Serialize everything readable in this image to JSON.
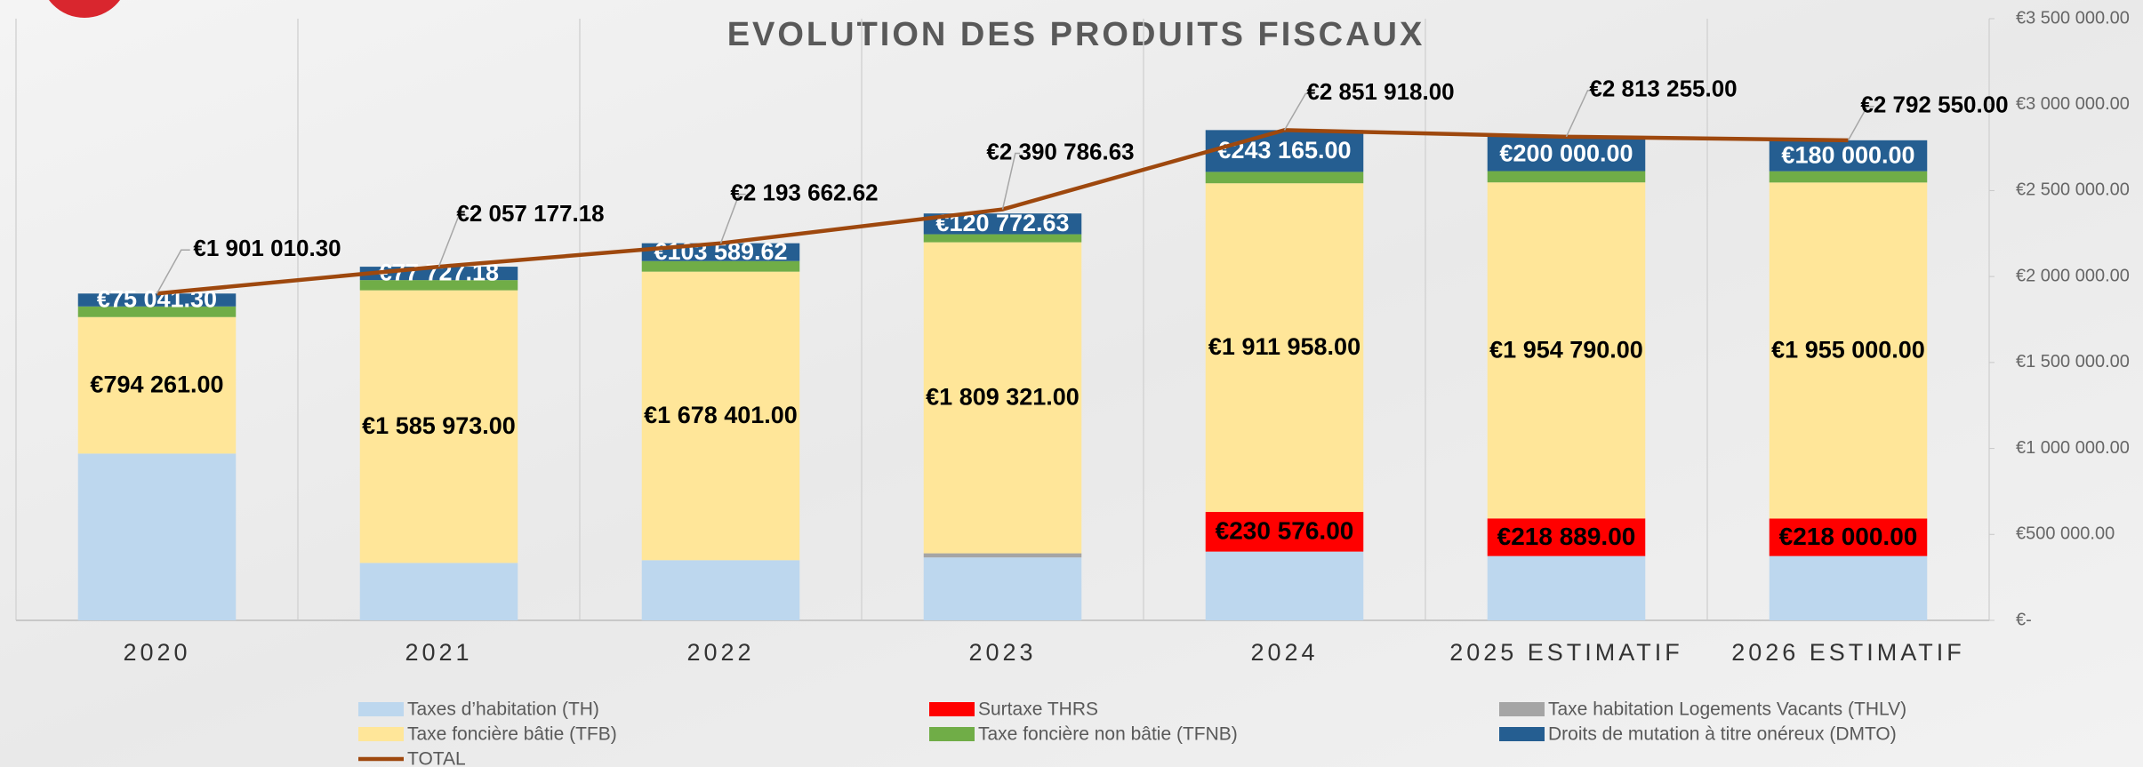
{
  "chart_data": {
    "type": "stacked_bar_line",
    "title": "EVOLUTION DES PRODUITS FISCAUX",
    "categories": [
      "2020",
      "2021",
      "2022",
      "2023",
      "2024",
      "2025 ESTIMATIF",
      "2026 ESTIMATIF"
    ],
    "ylim": [
      0,
      3500000
    ],
    "yticks": [
      {
        "value": 0,
        "label": "€-"
      },
      {
        "value": 500000,
        "label": "€500 000.00"
      },
      {
        "value": 1000000,
        "label": "€1 000 000.00"
      },
      {
        "value": 1500000,
        "label": "€1 500 000.00"
      },
      {
        "value": 2000000,
        "label": "€2 000 000.00"
      },
      {
        "value": 2500000,
        "label": "€2 500 000.00"
      },
      {
        "value": 3000000,
        "label": "€3 000 000.00"
      },
      {
        "value": 3500000,
        "label": "€3 500 000.00"
      }
    ],
    "series": [
      {
        "name": "Taxes  d’habitation (TH)",
        "color": "#bdd7ee",
        "values": [
          970000,
          334000,
          350000,
          366000,
          400000,
          374000,
          374000
        ]
      },
      {
        "name": "Surtaxe THRS",
        "color": "#ff0000",
        "values": [
          null,
          null,
          null,
          null,
          230576,
          218889,
          218000
        ],
        "value_labels": [
          null,
          null,
          null,
          null,
          "€230 576.00",
          "€218 889.00",
          "€218 000.00"
        ]
      },
      {
        "name": "Taxe habitation Logements Vacants (THLV)",
        "color": "#a5a5a5",
        "values": [
          null,
          null,
          null,
          24000,
          null,
          null,
          null
        ]
      },
      {
        "name": "Taxe foncière bâtie (TFB)",
        "color": "#ffe699",
        "values": [
          794261,
          1585973,
          1678401,
          1809321,
          1911958,
          1954790,
          1955000
        ],
        "value_labels": [
          "€794 261.00",
          "€1 585 973.00",
          "€1 678 401.00",
          "€1 809 321.00",
          "€1 911 958.00",
          "€1 954 790.00",
          "€1 955 000.00"
        ]
      },
      {
        "name": "Taxe foncière non bâtie (TFNB)",
        "color": "#70ad47",
        "values": [
          61708,
          59477,
          61672,
          46693,
          66219,
          65576,
          65550
        ]
      },
      {
        "name": "Droits de mutation à titre onéreux (DMTO)",
        "color": "#255e91",
        "values": [
          75041.3,
          77727.18,
          103589.62,
          120772.63,
          243165,
          200000,
          180000
        ],
        "value_labels": [
          "€75 041.30",
          "€77 727.18",
          "€103 589.62",
          "€120 772.63",
          "€243 165.00",
          "€200 000.00",
          "€180 000.00"
        ]
      },
      {
        "name": "TOTAL",
        "color": "#9e480e",
        "type": "line",
        "values": [
          1901010.3,
          2057177.18,
          2193662.62,
          2390786.63,
          2851918,
          2813255,
          2792550
        ],
        "value_labels": [
          "€1 901 010.30",
          "€2 057 177.18",
          "€2 193 662.62",
          "€2 390 786.63",
          "€2 851 918.00",
          "€2 813 255.00",
          "€2 792 550.00"
        ]
      }
    ]
  }
}
